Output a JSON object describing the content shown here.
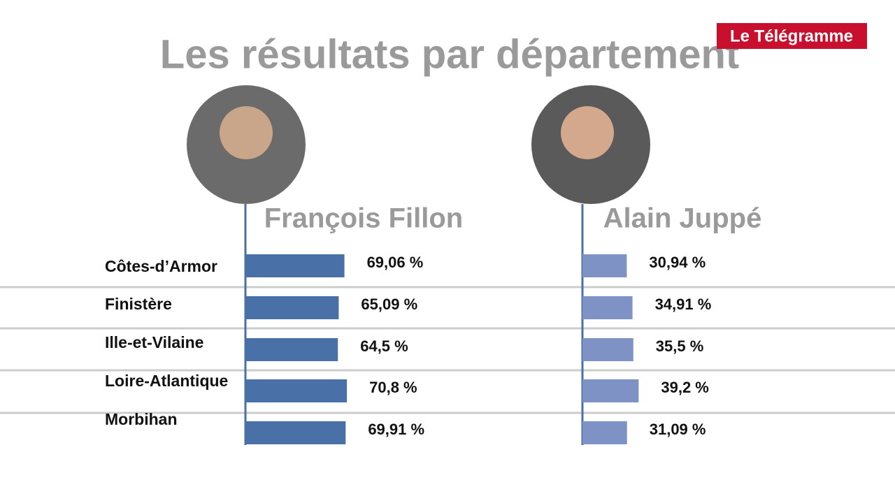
{
  "chart_data": {
    "type": "bar",
    "orientation": "horizontal",
    "title": "Les résultats par département",
    "source": "Le Télégramme",
    "categories": [
      "Côtes-­d’Armor",
      "Finistère",
      "Ille-et-­Vilaine",
      "Loire-Atlantique",
      "Morbihan"
    ],
    "series": [
      {
        "name": "François Fillon",
        "color": "#4a70a8",
        "values": [
          69.06,
          65.09,
          64.5,
          70.8,
          69.91
        ],
        "value_labels": [
          "69,06 %",
          "65,09 %",
          "64,5 %",
          "70,8 %",
          "69,91 %"
        ]
      },
      {
        "name": "Alain Juppé",
        "color": "#7f92c6",
        "values": [
          30.94,
          34.91,
          35.5,
          39.2,
          31.09
        ],
        "value_labels": [
          "30,94 %",
          "34,91 %",
          "35,5 %",
          "39,2 %",
          "31,09 %"
        ]
      }
    ]
  }
}
